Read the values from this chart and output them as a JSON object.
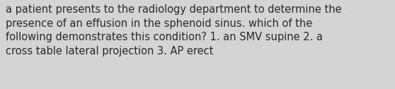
{
  "text": "a patient presents to the radiology department to determine the\npresence of an effusion in the sphenoid sinus. which of the\nfollowing demonstrates this condition? 1. an SMV supine 2. a\ncross table lateral projection 3. AP erect",
  "background_color": "#d4d4d4",
  "text_color": "#2a2a2a",
  "font_size": 10.5,
  "fig_width": 5.58,
  "fig_height": 1.26,
  "dpi": 100
}
